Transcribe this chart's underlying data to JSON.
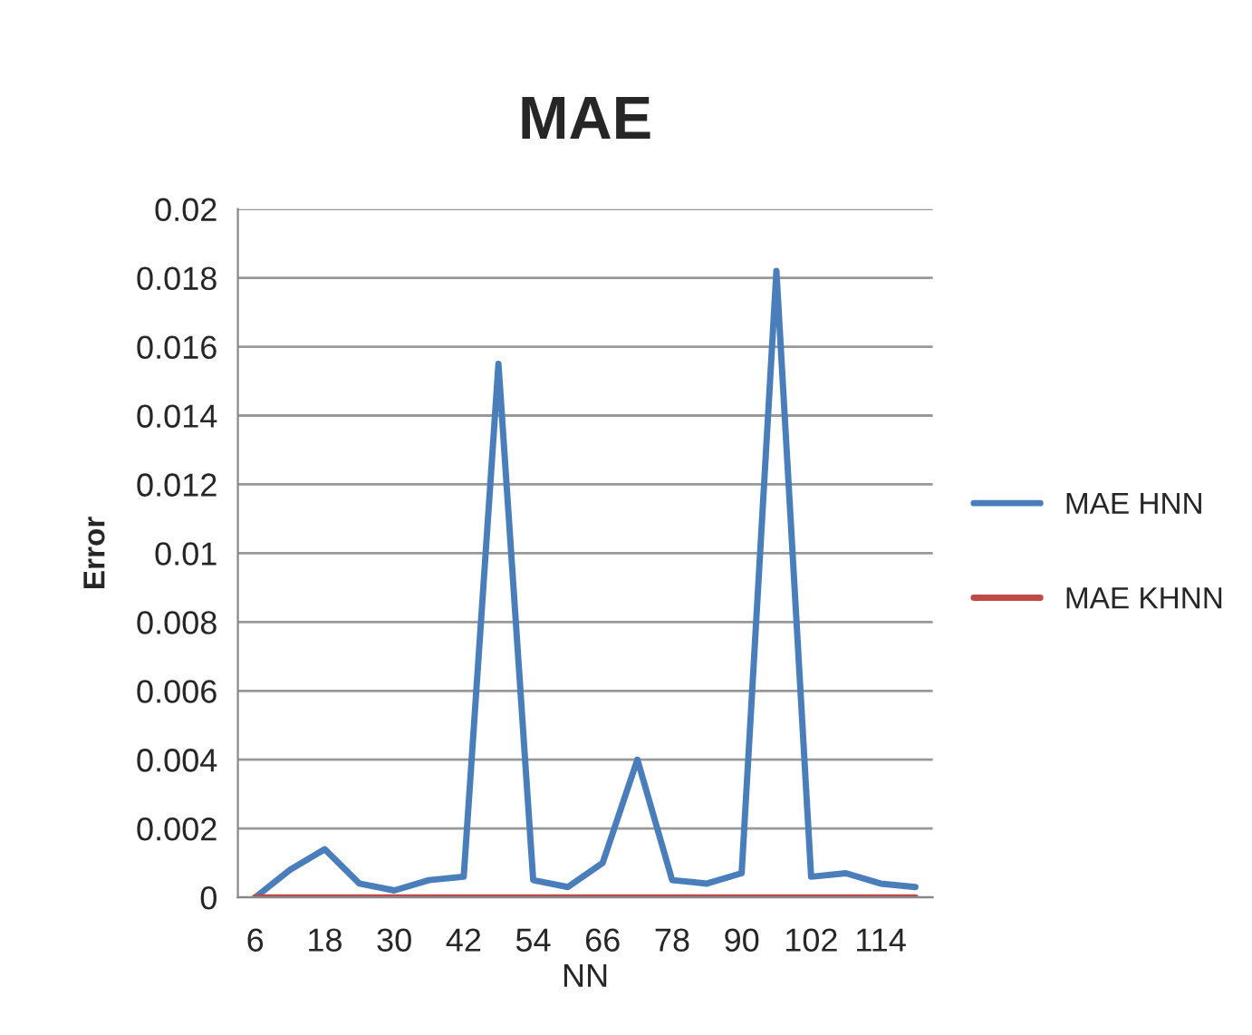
{
  "chart_data": {
    "type": "line",
    "title": "MAE",
    "xlabel": "NN",
    "ylabel": "Error",
    "categories": [
      "6",
      null,
      "18",
      null,
      "30",
      null,
      "42",
      null,
      "54",
      null,
      "66",
      null,
      "78",
      null,
      "90",
      null,
      "102",
      null,
      "114",
      null
    ],
    "series": [
      {
        "name": "MAE HNN",
        "color": "#4a7ebb",
        "values": [
          0,
          0.0008,
          0.0014,
          0.0004,
          0.0002,
          0.0005,
          0.0006,
          0.0155,
          0.0005,
          0.0003,
          0.001,
          0.004,
          0.0005,
          0.0004,
          0.0007,
          0.0182,
          0.0006,
          0.0007,
          0.0004,
          0.0003
        ]
      },
      {
        "name": "MAE KHNN",
        "color": "#be4b48",
        "values": [
          0,
          0,
          0,
          0,
          0,
          0,
          0,
          0,
          0,
          0,
          0,
          0,
          0,
          0,
          0,
          0,
          0,
          0,
          0,
          0
        ]
      }
    ],
    "ylim": [
      0,
      0.02
    ],
    "yticks": [
      0,
      0.002,
      0.004,
      0.006,
      0.008,
      0.01,
      0.012,
      0.014,
      0.016,
      0.018,
      0.02
    ],
    "grid": "y",
    "legend": "right",
    "marker": "none",
    "line_style": "solid"
  }
}
